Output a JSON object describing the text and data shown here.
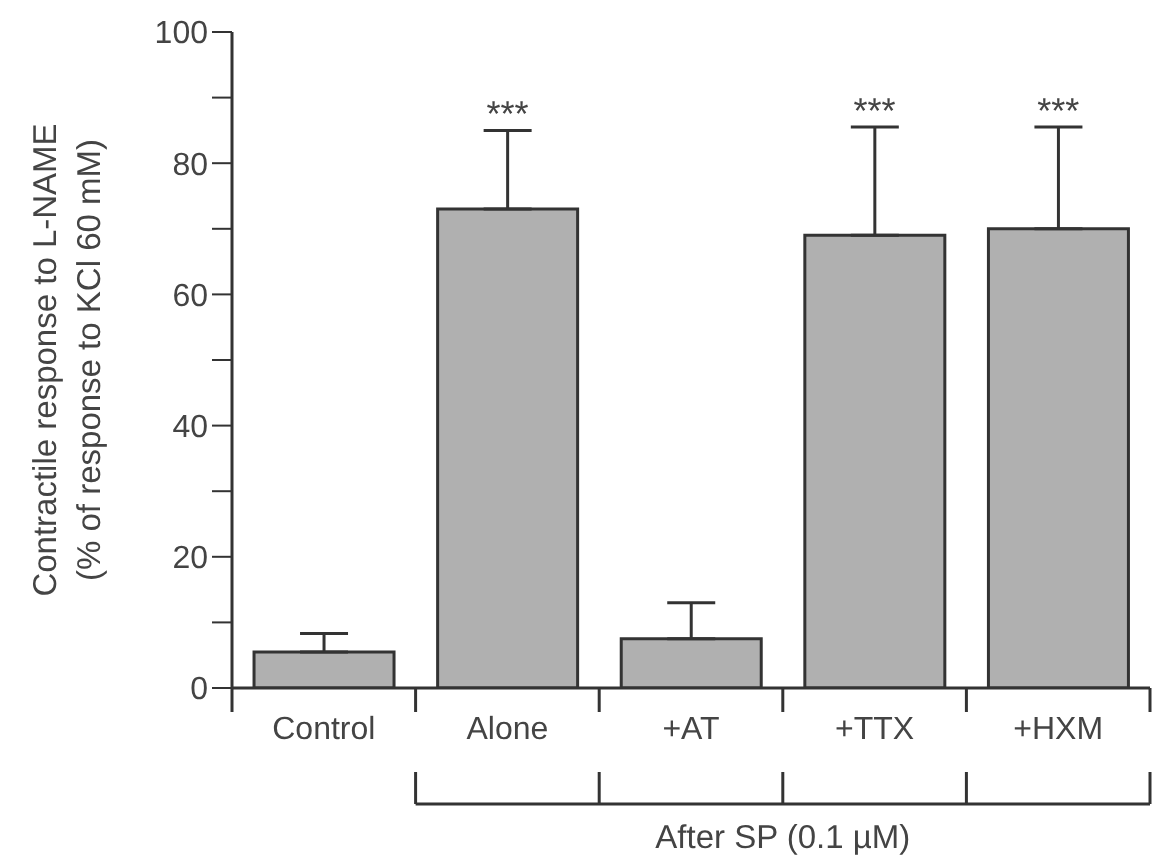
{
  "chart_data": {
    "type": "bar",
    "ylabel": "Contractile response to L-NAME (% of response to KCl 60 mM)",
    "xlabel": "After SP (0.1 µM)",
    "categories": [
      "Control",
      "Alone",
      "+AT",
      "+TTX",
      "+HXM"
    ],
    "values": [
      5.5,
      73,
      7.5,
      69,
      70
    ],
    "errors": [
      [
        5.5,
        8.3
      ],
      [
        73,
        85
      ],
      [
        7.5,
        13
      ],
      [
        69,
        85.5
      ],
      [
        70,
        85.5
      ]
    ],
    "color": "#b0b0b0",
    "ylim": [
      0,
      100
    ],
    "yticks": [
      0,
      {
        "value": 10,
        "label": null
      },
      20,
      {
        "value": 30,
        "label": null
      },
      40,
      {
        "value": 50,
        "label": null
      },
      60,
      {
        "value": 70,
        "label": null
      },
      80,
      {
        "value": 90,
        "label": null
      },
      100
    ],
    "annotations": [
      {
        "text": "***",
        "x": "Alone",
        "y": 85
      },
      {
        "text": "***",
        "x": "+TTX",
        "y": 85.5
      },
      {
        "text": "***",
        "x": "+HXM",
        "y": 85.5
      }
    ],
    "grid": false,
    "legend": false
  }
}
